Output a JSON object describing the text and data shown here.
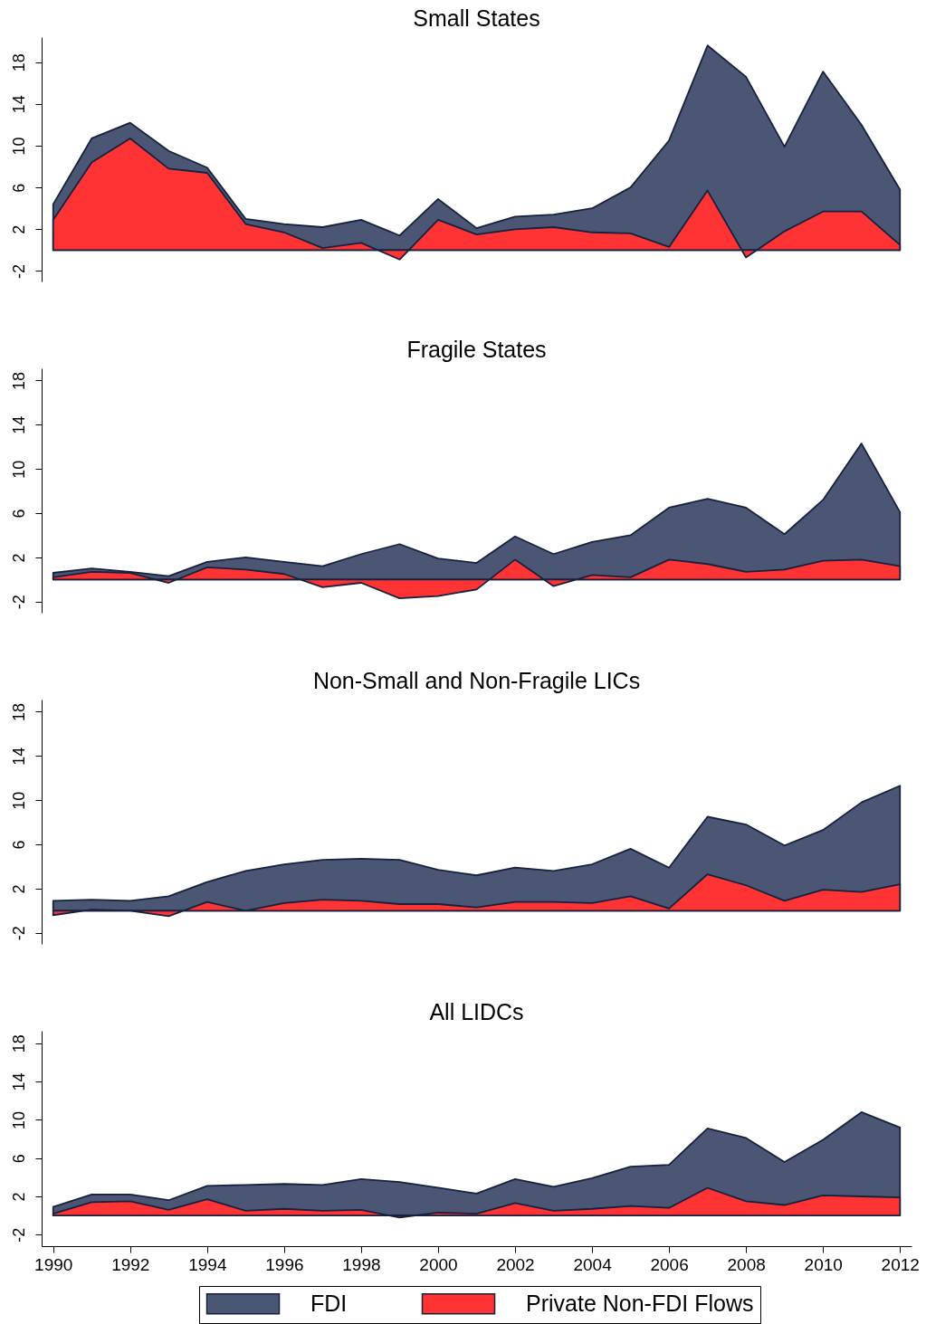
{
  "chart_data": [
    {
      "type": "area",
      "title": "Small States",
      "x": [
        1990,
        1991,
        1992,
        1993,
        1994,
        1995,
        1996,
        1997,
        1998,
        1999,
        2000,
        2001,
        2002,
        2003,
        2004,
        2005,
        2006,
        2007,
        2008,
        2009,
        2010,
        2011,
        2012
      ],
      "ylim": [
        -3,
        20.4
      ],
      "yticks": [
        -2,
        2,
        6,
        10,
        14,
        18
      ],
      "tick_labels": "y",
      "series": [
        {
          "color": "#4b5675",
          "values": [
            4.4,
            10.7,
            12.2,
            9.5,
            7.9,
            3.0,
            2.5,
            2.2,
            2.9,
            1.4,
            4.9,
            2.1,
            3.2,
            3.4,
            4.0,
            6.0,
            10.5,
            19.6,
            16.6,
            9.9,
            17.1,
            12.0,
            5.8
          ]
        },
        {
          "color": "#ff3333",
          "values": [
            2.9,
            8.4,
            10.7,
            7.8,
            7.4,
            2.5,
            1.7,
            0.2,
            0.7,
            -0.9,
            2.9,
            1.5,
            2.0,
            2.2,
            1.7,
            1.6,
            0.3,
            5.7,
            -0.7,
            1.8,
            3.7,
            3.7,
            0.5
          ]
        }
      ]
    },
    {
      "type": "area",
      "title": "Fragile States",
      "x": [
        1990,
        1991,
        1992,
        1993,
        1994,
        1995,
        1996,
        1997,
        1998,
        1999,
        2000,
        2001,
        2002,
        2003,
        2004,
        2005,
        2006,
        2007,
        2008,
        2009,
        2010,
        2011,
        2012
      ],
      "ylim": [
        -3,
        19.1
      ],
      "yticks": [
        -2,
        2,
        6,
        10,
        14,
        18
      ],
      "tick_labels": "y",
      "series": [
        {
          "color": "#4b5675",
          "values": [
            0.6,
            1.0,
            0.7,
            0.3,
            1.6,
            2.0,
            1.6,
            1.2,
            2.3,
            3.2,
            1.9,
            1.5,
            3.9,
            2.3,
            3.4,
            4.0,
            6.5,
            7.3,
            6.5,
            4.1,
            7.2,
            12.3,
            6.1
          ]
        },
        {
          "color": "#ff3333",
          "values": [
            0.2,
            0.7,
            0.6,
            -0.3,
            1.1,
            0.9,
            0.5,
            -0.7,
            -0.3,
            -1.7,
            -1.5,
            -0.9,
            1.8,
            -0.6,
            0.4,
            0.2,
            1.8,
            1.4,
            0.7,
            0.9,
            1.7,
            1.8,
            1.2
          ]
        }
      ]
    },
    {
      "type": "area",
      "title": "Non-Small and Non-Fragile LICs",
      "x": [
        1990,
        1991,
        1992,
        1993,
        1994,
        1995,
        1996,
        1997,
        1998,
        1999,
        2000,
        2001,
        2002,
        2003,
        2004,
        2005,
        2006,
        2007,
        2008,
        2009,
        2010,
        2011,
        2012
      ],
      "ylim": [
        -3,
        19.1
      ],
      "yticks": [
        -2,
        2,
        6,
        10,
        14,
        18
      ],
      "tick_labels": "y",
      "series": [
        {
          "color": "#4b5675",
          "values": [
            0.9,
            1.0,
            0.9,
            1.3,
            2.6,
            3.6,
            4.2,
            4.6,
            4.7,
            4.6,
            3.7,
            3.2,
            3.9,
            3.6,
            4.2,
            5.6,
            3.9,
            8.5,
            7.8,
            5.9,
            7.3,
            9.8,
            11.3
          ]
        },
        {
          "color": "#ff3333",
          "values": [
            -0.4,
            0.1,
            0.0,
            -0.5,
            0.8,
            0.0,
            0.7,
            1.0,
            0.9,
            0.6,
            0.6,
            0.3,
            0.8,
            0.8,
            0.7,
            1.3,
            0.2,
            3.3,
            2.3,
            0.9,
            1.9,
            1.7,
            2.4
          ]
        }
      ]
    },
    {
      "type": "area",
      "title": "All LIDCs",
      "x": [
        1990,
        1991,
        1992,
        1993,
        1994,
        1995,
        1996,
        1997,
        1998,
        1999,
        2000,
        2001,
        2002,
        2003,
        2004,
        2005,
        2006,
        2007,
        2008,
        2009,
        2010,
        2011,
        2012
      ],
      "xlim": [
        1989.7,
        2012.3
      ],
      "xticks": [
        1990,
        1992,
        1994,
        1996,
        1998,
        2000,
        2002,
        2004,
        2006,
        2008,
        2010,
        2012
      ],
      "ylim": [
        -3.2,
        19.3
      ],
      "yticks": [
        -2,
        2,
        6,
        10,
        14,
        18
      ],
      "legend": "bottom",
      "series": [
        {
          "name": "FDI",
          "color": "#4b5675",
          "values": [
            0.9,
            2.2,
            2.2,
            1.6,
            3.1,
            3.2,
            3.3,
            3.2,
            3.8,
            3.5,
            2.9,
            2.3,
            3.8,
            3.0,
            3.9,
            5.1,
            5.3,
            9.1,
            8.1,
            5.6,
            7.9,
            10.8,
            9.2
          ]
        },
        {
          "name": "Private Non-FDI Flows",
          "color": "#ff3333",
          "values": [
            0.2,
            1.4,
            1.5,
            0.6,
            1.7,
            0.5,
            0.7,
            0.5,
            0.6,
            -0.2,
            0.3,
            0.2,
            1.3,
            0.5,
            0.7,
            1.0,
            0.8,
            2.9,
            1.5,
            1.1,
            2.1,
            2.0,
            1.9
          ]
        }
      ]
    }
  ]
}
